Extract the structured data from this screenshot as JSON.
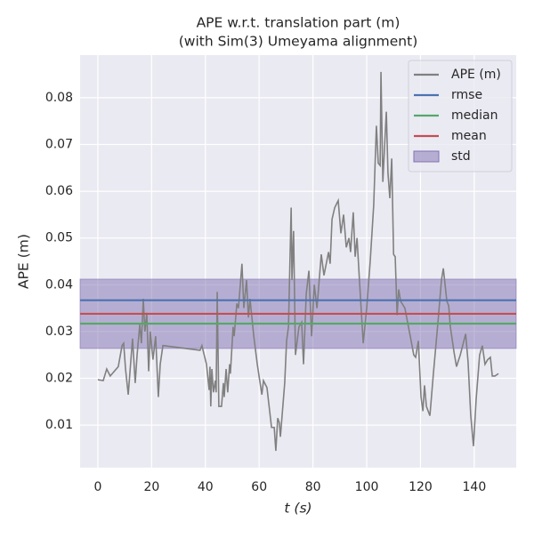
{
  "chart_data": {
    "type": "line",
    "title": "APE w.r.t. translation part (m)",
    "subtitle": "(with Sim(3) Umeyama alignment)",
    "x_label": "t (s)",
    "y_label": "APE (m)",
    "x": [
      0,
      2,
      3.3,
      4.6,
      7.6,
      9,
      9.6,
      10.3,
      11.3,
      12.9,
      13.9,
      14.6,
      15.6,
      16.2,
      16.9,
      17.5,
      18.2,
      18.9,
      19.5,
      20.5,
      21.5,
      22.5,
      23.2,
      24.2,
      38,
      38.7,
      40.4,
      41.4,
      41.7,
      42,
      42.4,
      43,
      43.7,
      44,
      44.4,
      45,
      46,
      46.7,
      47,
      47.7,
      48.3,
      49,
      49.3,
      50.3,
      50.7,
      51.7,
      52.3,
      53.6,
      54.3,
      55.3,
      56,
      56.6,
      58,
      59.3,
      61,
      61.6,
      62.9,
      63.9,
      64.6,
      65.6,
      66.2,
      66.9,
      67.5,
      67.9,
      69.5,
      70.2,
      70.9,
      71.9,
      72.2,
      72.8,
      73.5,
      74.8,
      75.8,
      76.5,
      77.5,
      78.5,
      79.5,
      80.5,
      81.5,
      83.1,
      84.1,
      85.8,
      86.4,
      87.1,
      88.1,
      89.4,
      90.4,
      91.4,
      92.4,
      93.4,
      94,
      95,
      95.7,
      96.4,
      97.4,
      98.7,
      100,
      101.3,
      102.6,
      103.6,
      104.3,
      105,
      105.3,
      106,
      106.6,
      107.3,
      107.9,
      108.6,
      109.3,
      110,
      110.6,
      111.3,
      111.9,
      112.6,
      114.2,
      116.2,
      117.5,
      118.2,
      119.2,
      120.2,
      120.9,
      121.5,
      122.2,
      123.5,
      124.8,
      126.5,
      127.8,
      128.5,
      129.8,
      130.5,
      131.1,
      132.5,
      133.4,
      134.8,
      136.8,
      137.7,
      138.7,
      139.7,
      140.7,
      142,
      143,
      144,
      145,
      146,
      146.7,
      147.7,
      149
    ],
    "series": [
      {
        "name": "APE (m)",
        "color": "#808080",
        "values": [
          0.0197,
          0.0195,
          0.022,
          0.0205,
          0.0225,
          0.027,
          0.0275,
          0.022,
          0.0165,
          0.0285,
          0.019,
          0.025,
          0.0315,
          0.0275,
          0.037,
          0.03,
          0.034,
          0.0215,
          0.03,
          0.024,
          0.029,
          0.016,
          0.023,
          0.027,
          0.026,
          0.027,
          0.023,
          0.0175,
          0.0225,
          0.014,
          0.022,
          0.017,
          0.0195,
          0.017,
          0.0385,
          0.014,
          0.014,
          0.019,
          0.016,
          0.022,
          0.017,
          0.023,
          0.021,
          0.031,
          0.029,
          0.036,
          0.035,
          0.0445,
          0.035,
          0.041,
          0.033,
          0.037,
          0.029,
          0.023,
          0.0165,
          0.0195,
          0.018,
          0.013,
          0.0095,
          0.0095,
          0.0045,
          0.0115,
          0.0105,
          0.0075,
          0.019,
          0.028,
          0.031,
          0.0565,
          0.041,
          0.0515,
          0.025,
          0.031,
          0.032,
          0.023,
          0.038,
          0.043,
          0.029,
          0.04,
          0.035,
          0.0465,
          0.042,
          0.047,
          0.0445,
          0.054,
          0.0565,
          0.058,
          0.051,
          0.055,
          0.048,
          0.05,
          0.047,
          0.0555,
          0.046,
          0.05,
          0.04,
          0.0275,
          0.035,
          0.045,
          0.057,
          0.074,
          0.066,
          0.0655,
          0.0855,
          0.062,
          0.069,
          0.077,
          0.064,
          0.0585,
          0.067,
          0.0465,
          0.046,
          0.0335,
          0.039,
          0.0365,
          0.035,
          0.029,
          0.025,
          0.0245,
          0.028,
          0.016,
          0.013,
          0.0185,
          0.014,
          0.012,
          0.021,
          0.032,
          0.041,
          0.0435,
          0.0365,
          0.0355,
          0.031,
          0.0255,
          0.0225,
          0.025,
          0.0295,
          0.0235,
          0.012,
          0.0055,
          0.0155,
          0.025,
          0.027,
          0.023,
          0.024,
          0.0245,
          0.0205,
          0.0205,
          0.021
        ]
      }
    ],
    "stats": [
      {
        "name": "rmse",
        "color": "#4c72b0",
        "value": 0.0367
      },
      {
        "name": "median",
        "color": "#55a868",
        "value": 0.0317
      },
      {
        "name": "mean",
        "color": "#c44e52",
        "value": 0.0338
      }
    ],
    "std": {
      "name": "std",
      "color": "#8172b2",
      "value": 0.0074
    },
    "xlim": [
      -6.6,
      155.6
    ],
    "ylim": [
      0.0009,
      0.0891
    ],
    "xticks": [
      0,
      20,
      40,
      60,
      80,
      100,
      120,
      140
    ],
    "yticks": [
      0.01,
      0.02,
      0.03,
      0.04,
      0.05,
      0.06,
      0.07,
      0.08
    ],
    "grid": true,
    "legend": "upper right"
  }
}
